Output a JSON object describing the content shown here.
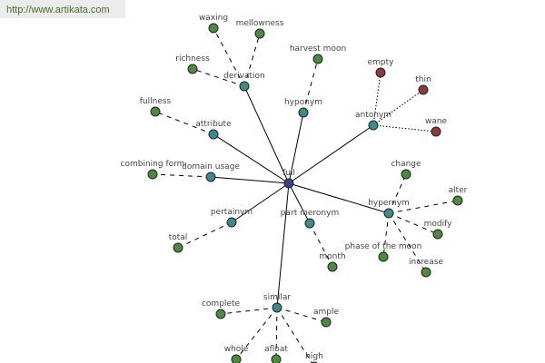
{
  "watermark": "http://www.artikata.com",
  "colors": {
    "center": "#3f3f8c",
    "relation": "#3d8a8a",
    "word": "#4d8a3d",
    "antonym_word": "#8c3a3a"
  },
  "nodes": [
    {
      "id": "full",
      "label": "full",
      "type": "center"
    },
    {
      "id": "derivation",
      "label": "derivation",
      "type": "relation",
      "parent": "full"
    },
    {
      "id": "waxing",
      "label": "waxing",
      "type": "word",
      "parent": "derivation"
    },
    {
      "id": "mellowness",
      "label": "mellowness",
      "type": "word",
      "parent": "derivation"
    },
    {
      "id": "richness",
      "label": "richness",
      "type": "word",
      "parent": "derivation"
    },
    {
      "id": "attribute",
      "label": "attribute",
      "type": "relation",
      "parent": "full"
    },
    {
      "id": "fullness",
      "label": "fullness",
      "type": "word",
      "parent": "attribute"
    },
    {
      "id": "domain_usage",
      "label": "domain usage",
      "type": "relation",
      "parent": "full"
    },
    {
      "id": "combining_form",
      "label": "combining form",
      "type": "word",
      "parent": "domain_usage"
    },
    {
      "id": "pertainym",
      "label": "pertainym",
      "type": "relation",
      "parent": "full"
    },
    {
      "id": "total",
      "label": "total",
      "type": "word",
      "parent": "pertainym"
    },
    {
      "id": "hyponym",
      "label": "hyponym",
      "type": "relation",
      "parent": "full"
    },
    {
      "id": "harvest_moon",
      "label": "harvest moon",
      "type": "word",
      "parent": "hyponym"
    },
    {
      "id": "antonym",
      "label": "antonym",
      "type": "relation",
      "parent": "full"
    },
    {
      "id": "empty",
      "label": "empty",
      "type": "antonym_word",
      "parent": "antonym"
    },
    {
      "id": "thin",
      "label": "thin",
      "type": "antonym_word",
      "parent": "antonym"
    },
    {
      "id": "wane",
      "label": "wane",
      "type": "antonym_word",
      "parent": "antonym"
    },
    {
      "id": "hypernym",
      "label": "hypernym",
      "type": "relation",
      "parent": "full"
    },
    {
      "id": "change",
      "label": "change",
      "type": "word",
      "parent": "hypernym"
    },
    {
      "id": "alter",
      "label": "alter",
      "type": "word",
      "parent": "hypernym"
    },
    {
      "id": "modify",
      "label": "modify",
      "type": "word",
      "parent": "hypernym"
    },
    {
      "id": "phase_of_the_moon",
      "label": "phase of the moon",
      "type": "word",
      "parent": "hypernym"
    },
    {
      "id": "increase",
      "label": "increase",
      "type": "word",
      "parent": "hypernym"
    },
    {
      "id": "part_meronym",
      "label": "part meronym",
      "type": "relation",
      "parent": "full"
    },
    {
      "id": "month",
      "label": "month",
      "type": "word",
      "parent": "part_meronym"
    },
    {
      "id": "similar",
      "label": "similar",
      "type": "relation",
      "parent": "full"
    },
    {
      "id": "complete",
      "label": "complete",
      "type": "word",
      "parent": "similar"
    },
    {
      "id": "ample",
      "label": "ample",
      "type": "word",
      "parent": "similar"
    },
    {
      "id": "whole",
      "label": "whole",
      "type": "word",
      "parent": "similar"
    },
    {
      "id": "afloat",
      "label": "afloat",
      "type": "word",
      "parent": "similar"
    },
    {
      "id": "high",
      "label": "high",
      "type": "word",
      "parent": "similar"
    }
  ]
}
